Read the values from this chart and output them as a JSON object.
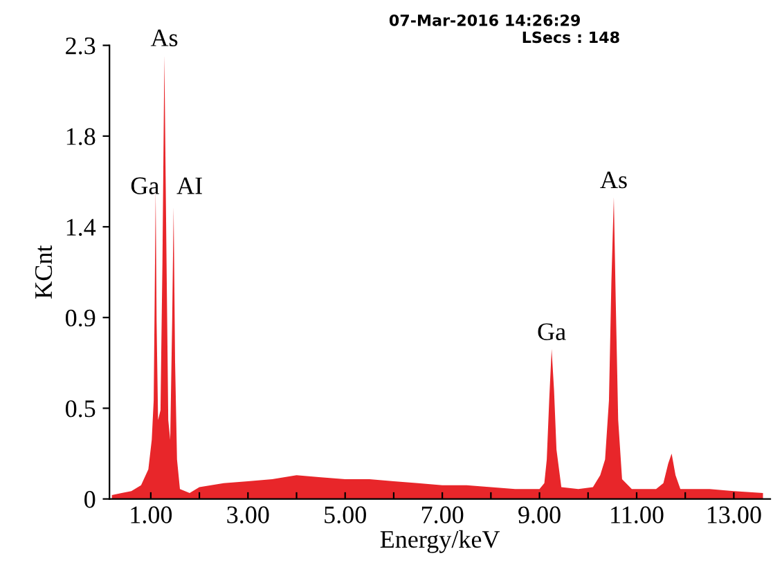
{
  "chart_data": {
    "type": "area",
    "xlabel": "Energy/keV",
    "ylabel": "KCnt",
    "annotations": [
      "07-Mar-2016 14:26:29",
      "LSecs : 148",
      {
        "text": "As",
        "x": 1.28,
        "y": 2.25
      },
      {
        "text": "Ga",
        "x": 1.1,
        "y": 1.5
      },
      {
        "text": "AI",
        "x": 1.49,
        "y": 1.5
      },
      {
        "text": "Ga",
        "x": 9.25,
        "y": 0.76
      },
      {
        "text": "As",
        "x": 10.53,
        "y": 1.53
      }
    ],
    "x": [
      0.2,
      0.4,
      0.6,
      0.8,
      0.95,
      1.02,
      1.06,
      1.08,
      1.1,
      1.12,
      1.15,
      1.2,
      1.24,
      1.28,
      1.32,
      1.36,
      1.4,
      1.44,
      1.47,
      1.5,
      1.54,
      1.6,
      1.8,
      2.0,
      2.5,
      3.0,
      3.5,
      4.0,
      4.5,
      5.0,
      5.5,
      6.0,
      6.5,
      7.0,
      7.5,
      8.0,
      8.5,
      9.0,
      9.1,
      9.15,
      9.2,
      9.25,
      9.3,
      9.35,
      9.45,
      9.8,
      10.1,
      10.25,
      10.35,
      10.43,
      10.48,
      10.53,
      10.57,
      10.62,
      10.7,
      10.9,
      11.4,
      11.55,
      11.65,
      11.72,
      11.8,
      11.9,
      12.5,
      13.0,
      13.6
    ],
    "series": [
      {
        "color": "#e8262a",
        "values": [
          0.02,
          0.03,
          0.04,
          0.07,
          0.15,
          0.3,
          0.5,
          1.0,
          1.57,
          0.9,
          0.4,
          0.45,
          1.2,
          2.25,
          1.3,
          0.4,
          0.3,
          0.9,
          1.48,
          0.7,
          0.2,
          0.05,
          0.03,
          0.06,
          0.08,
          0.09,
          0.1,
          0.12,
          0.11,
          0.1,
          0.1,
          0.09,
          0.08,
          0.07,
          0.07,
          0.06,
          0.05,
          0.05,
          0.08,
          0.2,
          0.5,
          0.76,
          0.55,
          0.25,
          0.06,
          0.05,
          0.06,
          0.12,
          0.2,
          0.5,
          1.1,
          1.53,
          1.0,
          0.4,
          0.1,
          0.05,
          0.05,
          0.08,
          0.18,
          0.23,
          0.12,
          0.05,
          0.05,
          0.04,
          0.03
        ]
      }
    ],
    "xlim": [
      0.15,
      13.75
    ],
    "xticks": [
      {
        "value": 1,
        "label": "1.00"
      },
      {
        "value": 2,
        "label": null
      },
      {
        "value": 3,
        "label": "3.00"
      },
      {
        "value": 4,
        "label": null
      },
      {
        "value": 5,
        "label": "5.00"
      },
      {
        "value": 6,
        "label": null
      },
      {
        "value": 7,
        "label": "7.00"
      },
      {
        "value": 8,
        "label": null
      },
      {
        "value": 9,
        "label": "9.00"
      },
      {
        "value": 10,
        "label": null
      },
      {
        "value": 11,
        "label": "11.00"
      },
      {
        "value": 12,
        "label": null
      },
      {
        "value": 13,
        "label": "13.00"
      }
    ],
    "ylim": [
      0,
      2.3
    ],
    "yticks": [
      {
        "value": 0,
        "label": "0"
      },
      {
        "value": 0.46,
        "label": "0.5"
      },
      {
        "value": 0.92,
        "label": "0.9"
      },
      {
        "value": 1.38,
        "label": "1.4"
      },
      {
        "value": 1.84,
        "label": "1.8"
      },
      {
        "value": 2.3,
        "label": "2.3"
      }
    ],
    "grid": false,
    "legend": false
  }
}
